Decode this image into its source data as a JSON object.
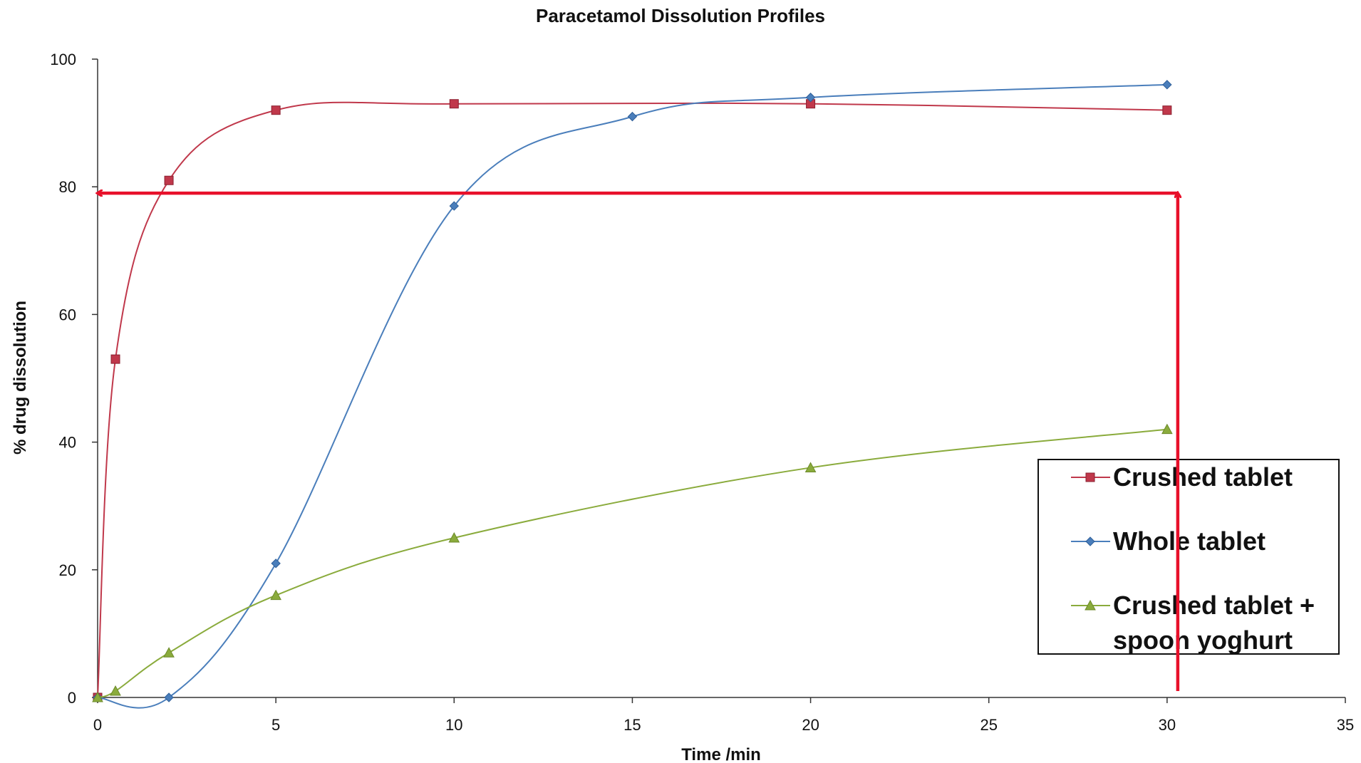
{
  "chart_data": {
    "type": "line",
    "title": "Paracetamol Dissolution Profiles",
    "xlabel": "Time /min",
    "ylabel": "% drug dissolution",
    "xlim": [
      0,
      35
    ],
    "ylim": [
      0,
      100
    ],
    "xticks": [
      0,
      5,
      10,
      15,
      20,
      25,
      30,
      35
    ],
    "yticks": [
      0,
      20,
      40,
      60,
      80,
      100
    ],
    "grid": false,
    "legend_position": "bottom-right",
    "series": [
      {
        "name": "Crushed tablet",
        "color": "#c0384b",
        "marker": "square",
        "x": [
          0,
          0.5,
          2,
          5,
          10,
          20,
          30
        ],
        "y": [
          0,
          53,
          81,
          92,
          93,
          93,
          92
        ]
      },
      {
        "name": "Whole tablet",
        "color": "#4a7ebb",
        "marker": "diamond",
        "x": [
          0,
          2,
          5,
          10,
          15,
          20,
          30
        ],
        "y": [
          0,
          0,
          21,
          77,
          91,
          94,
          96
        ]
      },
      {
        "name": "Crushed tablet + spoon yoghurt",
        "legend_lines": [
          "Crushed tablet +",
          "spoon yoghurt"
        ],
        "color": "#8aab3c",
        "marker": "triangle",
        "x": [
          0,
          0.5,
          2,
          5,
          10,
          20,
          30
        ],
        "y": [
          0,
          1,
          7,
          16,
          25,
          36,
          42
        ]
      }
    ],
    "annotations": [
      {
        "type": "arrow",
        "color": "#e8102a",
        "description": "vertical arrow up at ~30.3 min from 0 to 79%",
        "x": [
          30.3,
          30.3
        ],
        "y": [
          1,
          79
        ]
      },
      {
        "type": "arrow",
        "color": "#e8102a",
        "description": "horizontal arrow left at ~79% to y-axis",
        "x": [
          30.3,
          0
        ],
        "y": [
          79,
          79
        ]
      }
    ]
  }
}
